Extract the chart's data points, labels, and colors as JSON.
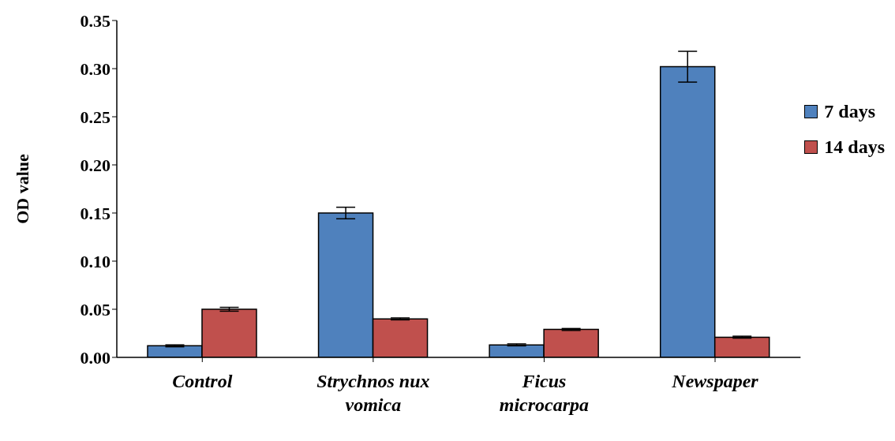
{
  "chart_data": {
    "type": "bar",
    "ylabel": "OD value",
    "categories": [
      "Control",
      "Strychnos nux vomica",
      "Ficus microcarpa",
      "Newspaper"
    ],
    "series": [
      {
        "name": "7 days",
        "color": "#4f81bd",
        "values": [
          0.012,
          0.15,
          0.013,
          0.302
        ],
        "errors": [
          0.001,
          0.006,
          0.001,
          0.016
        ]
      },
      {
        "name": "14 days",
        "color": "#c0504d",
        "values": [
          0.05,
          0.04,
          0.029,
          0.021
        ],
        "errors": [
          0.002,
          0.001,
          0.001,
          0.001
        ]
      }
    ],
    "ylim": [
      0,
      0.35
    ],
    "yticks": [
      {
        "value": 0,
        "label": "0.00"
      },
      0.05,
      {
        "value": 0.1,
        "label": "0.10"
      },
      0.15,
      {
        "value": 0.2,
        "label": "0.20"
      },
      0.25,
      {
        "value": 0.3,
        "label": "0.30"
      },
      0.35
    ],
    "grid": false,
    "legend": "right"
  }
}
